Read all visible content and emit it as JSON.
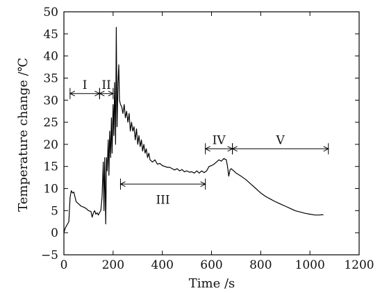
{
  "chart_data": {
    "type": "line",
    "xlabel": "Time /s",
    "ylabel": "Temperature change /℃",
    "xlim": [
      0,
      1200
    ],
    "ylim": [
      -5,
      50
    ],
    "xticks": [
      0,
      200,
      400,
      600,
      800,
      1000,
      1200
    ],
    "yticks": [
      -5,
      0,
      5,
      10,
      15,
      20,
      25,
      30,
      35,
      40,
      45,
      50
    ],
    "grid": false,
    "series": [
      {
        "name": "",
        "x": [
          0,
          5,
          10,
          15,
          20,
          25,
          30,
          35,
          40,
          50,
          60,
          70,
          80,
          90,
          100,
          110,
          115,
          120,
          125,
          130,
          135,
          140,
          145,
          150,
          155,
          160,
          163,
          166,
          170,
          173,
          176,
          180,
          183,
          186,
          190,
          193,
          196,
          200,
          203,
          206,
          210,
          213,
          216,
          220,
          223,
          226,
          230,
          235,
          240,
          245,
          250,
          255,
          260,
          265,
          270,
          275,
          280,
          285,
          290,
          295,
          300,
          305,
          310,
          315,
          320,
          325,
          330,
          335,
          340,
          345,
          350,
          360,
          370,
          380,
          390,
          400,
          410,
          420,
          430,
          440,
          450,
          460,
          470,
          480,
          490,
          500,
          510,
          520,
          530,
          540,
          550,
          560,
          570,
          580,
          590,
          600,
          610,
          620,
          630,
          640,
          650,
          660,
          665,
          670,
          675,
          680,
          690,
          700,
          720,
          740,
          760,
          780,
          800,
          820,
          840,
          860,
          880,
          900,
          920,
          940,
          960,
          980,
          1000,
          1020,
          1040,
          1050,
          1055
        ],
        "y": [
          0,
          1,
          1.5,
          2,
          2.5,
          8,
          9.5,
          9,
          9.2,
          7,
          6.5,
          6,
          5.8,
          5.5,
          5,
          4.8,
          3.5,
          4.5,
          5,
          4.2,
          4.5,
          4,
          4.6,
          5,
          8,
          16,
          5,
          17,
          2,
          17,
          14,
          21,
          13,
          23,
          17,
          26,
          18,
          29,
          22,
          34,
          20,
          46.5,
          24,
          34,
          38,
          30,
          29,
          28.5,
          27,
          29,
          26,
          27.5,
          25,
          27,
          23,
          25,
          23,
          24,
          21,
          23.5,
          20,
          22,
          19.5,
          21,
          18.5,
          20,
          18,
          19,
          17,
          18,
          16.5,
          16,
          16.5,
          15.5,
          15.7,
          15.2,
          15,
          14.8,
          14.8,
          14.5,
          14.2,
          14.5,
          14,
          14.3,
          13.8,
          14,
          13.7,
          13.8,
          13.5,
          14,
          13.5,
          14,
          13.6,
          14,
          15,
          15.2,
          15.5,
          16,
          16.5,
          16.2,
          16.8,
          16.5,
          15,
          12.8,
          14.2,
          14.5,
          14,
          13.5,
          12.8,
          12,
          11,
          10,
          9,
          8.2,
          7.6,
          7,
          6.5,
          6,
          5.5,
          5,
          4.7,
          4.4,
          4.2,
          4,
          4,
          4.1,
          4
        ]
      }
    ],
    "annotations": [
      {
        "label": "I",
        "x_start": 25,
        "x_end": 145,
        "y": 31.5,
        "text_y": 33.5
      },
      {
        "label": "II",
        "x_start": 145,
        "x_end": 200,
        "y": 31.5,
        "text_y": 33.5
      },
      {
        "label": "III",
        "x_start": 230,
        "x_end": 575,
        "y": 11,
        "text_y": 7.5
      },
      {
        "label": "IV",
        "x_start": 575,
        "x_end": 685,
        "y": 19,
        "text_y": 21
      },
      {
        "label": "V",
        "x_start": 685,
        "x_end": 1075,
        "y": 19,
        "text_y": 21
      }
    ]
  }
}
